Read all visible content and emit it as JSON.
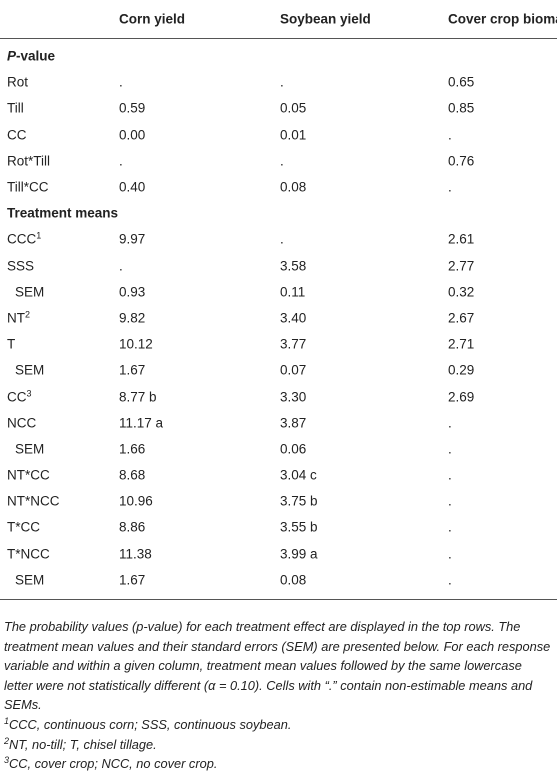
{
  "table": {
    "header": [
      "Corn yield",
      "Soybean yield",
      "Cover crop biomass"
    ],
    "sections": [
      {
        "title": {
          "italic": "P",
          "text": "-value"
        },
        "rows": [
          {
            "label": "Rot",
            "cells": [
              ".",
              ".",
              "0.65"
            ]
          },
          {
            "label": "Till",
            "cells": [
              "0.59",
              "0.05",
              "0.85"
            ]
          },
          {
            "label": "CC",
            "cells": [
              "0.00",
              "0.01",
              "."
            ]
          },
          {
            "label": "Rot*Till",
            "cells": [
              ".",
              ".",
              "0.76"
            ]
          },
          {
            "label": "Till*CC",
            "cells": [
              "0.40",
              "0.08",
              "."
            ]
          }
        ]
      },
      {
        "title": {
          "text": "Treatment means"
        },
        "rows": [
          {
            "label": "CCC",
            "sup": "1",
            "cells": [
              "9.97",
              ".",
              "2.61"
            ]
          },
          {
            "label": "SSS",
            "cells": [
              ".",
              "3.58",
              "2.77"
            ]
          },
          {
            "label": "SEM",
            "indent": true,
            "cells": [
              "0.93",
              "0.11",
              "0.32"
            ]
          },
          {
            "label": "NT",
            "sup": "2",
            "cells": [
              "9.82",
              "3.40",
              "2.67"
            ]
          },
          {
            "label": "T",
            "cells": [
              "10.12",
              "3.77",
              "2.71"
            ]
          },
          {
            "label": "SEM",
            "indent": true,
            "cells": [
              "1.67",
              "0.07",
              "0.29"
            ]
          },
          {
            "label": "CC",
            "sup": "3",
            "cells": [
              "8.77 b",
              "3.30",
              "2.69"
            ]
          },
          {
            "label": "NCC",
            "cells": [
              "11.17 a",
              "3.87",
              "."
            ]
          },
          {
            "label": "SEM",
            "indent": true,
            "cells": [
              "1.66",
              "0.06",
              "."
            ]
          },
          {
            "label": "NT*CC",
            "cells": [
              "8.68",
              "3.04 c",
              "."
            ]
          },
          {
            "label": "NT*NCC",
            "cells": [
              "10.96",
              "3.75 b",
              "."
            ]
          },
          {
            "label": "T*CC",
            "cells": [
              "8.86",
              "3.55 b",
              "."
            ]
          },
          {
            "label": "T*NCC",
            "cells": [
              "11.38",
              "3.99 a",
              "."
            ]
          },
          {
            "label": "SEM",
            "indent": true,
            "cells": [
              "1.67",
              "0.08",
              "."
            ]
          }
        ]
      }
    ]
  },
  "notes": {
    "text": "The probability values (p-value) for each treatment effect are displayed in the top rows. The treatment mean values and their standard errors (SEM) are presented below. For each response variable and within a given column, treatment mean values followed by the same lowercase letter were not statistically different (α = 0.10). Cells with “.” contain non-estimable means and SEMs.",
    "footnotes": [
      {
        "sup": "1",
        "text": "CCC, continuous corn; SSS, continuous soybean."
      },
      {
        "sup": "2",
        "text": "NT, no-till; T, chisel tillage."
      },
      {
        "sup": "3",
        "text": "CC, cover crop; NCC, no cover crop."
      }
    ]
  }
}
